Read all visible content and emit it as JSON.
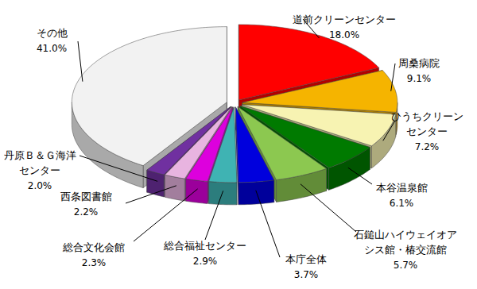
{
  "chart_data": {
    "type": "pie",
    "categories": [
      "道前クリーンセンター",
      "周桑病院",
      "ひうちクリーンセンター",
      "本谷温泉館",
      "石鎚山ハイウェイオアシス館・椿交流館",
      "本庁全体",
      "総合福祉センター",
      "総合文化会館",
      "西条図書館",
      "丹原Ｂ＆Ｇ海洋センター",
      "その他"
    ],
    "values": [
      18.0,
      9.1,
      7.2,
      6.1,
      5.7,
      3.7,
      2.9,
      2.3,
      2.2,
      2.0,
      41.0
    ],
    "value_labels": [
      "18.0%",
      "9.1%",
      "7.2%",
      "6.1%",
      "5.7%",
      "3.7%",
      "2.9%",
      "2.3%",
      "2.2%",
      "2.0%",
      "41.0%"
    ],
    "colors": [
      "#ff0000",
      "#f5b400",
      "#f7f3b2",
      "#007a00",
      "#8cc850",
      "#0000dd",
      "#3fb3b3",
      "#dd00dd",
      "#e8b4e0",
      "#7030a0",
      "#f2f2f2"
    ],
    "data_labels": true
  }
}
